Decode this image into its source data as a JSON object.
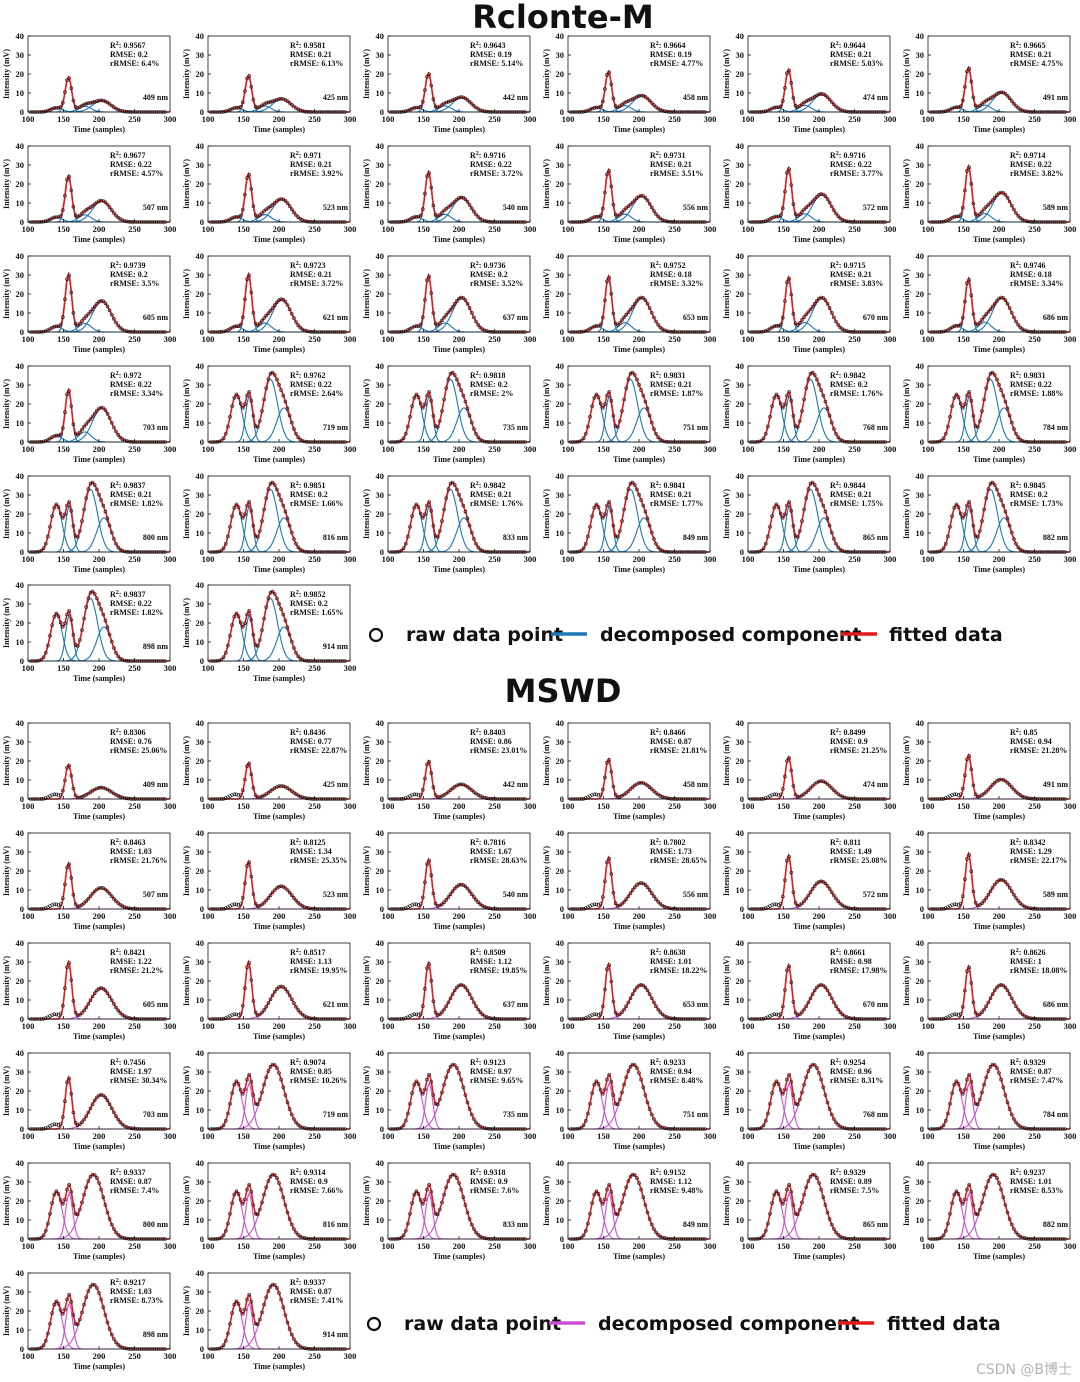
{
  "legend": {
    "raw": "raw data point",
    "component": "decomposed component",
    "fitted": "fitted data"
  },
  "watermark": "CSDN @B博士",
  "colors": {
    "raw_marker": "#1a1a1a",
    "fitted": "#e31a1c",
    "component_rclonte": "#1f77b4",
    "component_mswd": "#c94fd6"
  },
  "chart_data": [
    {
      "panel_group": "Rclonte-M",
      "type": "line",
      "xlabel": "Time (samples)",
      "ylabel": "Intensity (mV)",
      "xlim": [
        100,
        300
      ],
      "ylim": [
        0,
        40
      ],
      "xticks": [
        100,
        150,
        200,
        250,
        300
      ],
      "yticks": [
        0,
        10,
        20,
        30,
        40
      ],
      "series_names": [
        "raw data point",
        "decomposed component",
        "fitted data"
      ],
      "panels": [
        {
          "wavelength": "409 nm",
          "r2": "0.9567",
          "rmse": "0.2",
          "rrmse": "6.4%"
        },
        {
          "wavelength": "425 nm",
          "r2": "0.9581",
          "rmse": "0.21",
          "rrmse": "6.13%"
        },
        {
          "wavelength": "442 nm",
          "r2": "0.9643",
          "rmse": "0.19",
          "rrmse": "5.14%"
        },
        {
          "wavelength": "458 nm",
          "r2": "0.9664",
          "rmse": "0.19",
          "rrmse": "4.77%"
        },
        {
          "wavelength": "474 nm",
          "r2": "0.9644",
          "rmse": "0.21",
          "rrmse": "5.03%"
        },
        {
          "wavelength": "491 nm",
          "r2": "0.9665",
          "rmse": "0.21",
          "rrmse": "4.75%"
        },
        {
          "wavelength": "507 nm",
          "r2": "0.9677",
          "rmse": "0.22",
          "rrmse": "4.57%"
        },
        {
          "wavelength": "523 nm",
          "r2": "0.971",
          "rmse": "0.21",
          "rrmse": "3.92%"
        },
        {
          "wavelength": "540 nm",
          "r2": "0.9716",
          "rmse": "0.22",
          "rrmse": "3.72%"
        },
        {
          "wavelength": "556 nm",
          "r2": "0.9731",
          "rmse": "0.21",
          "rrmse": "3.51%"
        },
        {
          "wavelength": "572 nm",
          "r2": "0.9716",
          "rmse": "0.22",
          "rrmse": "3.77%"
        },
        {
          "wavelength": "589 nm",
          "r2": "0.9714",
          "rmse": "0.22",
          "rrmse": "3.82%"
        },
        {
          "wavelength": "605 nm",
          "r2": "0.9739",
          "rmse": "0.2",
          "rrmse": "3.5%"
        },
        {
          "wavelength": "621 nm",
          "r2": "0.9723",
          "rmse": "0.21",
          "rrmse": "3.72%"
        },
        {
          "wavelength": "637 nm",
          "r2": "0.9736",
          "rmse": "0.2",
          "rrmse": "3.52%"
        },
        {
          "wavelength": "653 nm",
          "r2": "0.9752",
          "rmse": "0.18",
          "rrmse": "3.32%"
        },
        {
          "wavelength": "670 nm",
          "r2": "0.9715",
          "rmse": "0.21",
          "rrmse": "3.83%"
        },
        {
          "wavelength": "686 nm",
          "r2": "0.9746",
          "rmse": "0.18",
          "rrmse": "3.34%"
        },
        {
          "wavelength": "703 nm",
          "r2": "0.972",
          "rmse": "0.22",
          "rrmse": "3.34%"
        },
        {
          "wavelength": "719 nm",
          "r2": "0.9762",
          "rmse": "0.22",
          "rrmse": "2.64%"
        },
        {
          "wavelength": "735 nm",
          "r2": "0.9818",
          "rmse": "0.2",
          "rrmse": "2%"
        },
        {
          "wavelength": "751 nm",
          "r2": "0.9831",
          "rmse": "0.21",
          "rrmse": "1.87%"
        },
        {
          "wavelength": "768 nm",
          "r2": "0.9842",
          "rmse": "0.2",
          "rrmse": "1.76%"
        },
        {
          "wavelength": "784 nm",
          "r2": "0.9831",
          "rmse": "0.22",
          "rrmse": "1.88%"
        },
        {
          "wavelength": "800 nm",
          "r2": "0.9837",
          "rmse": "0.21",
          "rrmse": "1.82%"
        },
        {
          "wavelength": "816 nm",
          "r2": "0.9851",
          "rmse": "0.2",
          "rrmse": "1.66%"
        },
        {
          "wavelength": "833 nm",
          "r2": "0.9842",
          "rmse": "0.21",
          "rrmse": "1.76%"
        },
        {
          "wavelength": "849 nm",
          "r2": "0.9841",
          "rmse": "0.21",
          "rrmse": "1.77%"
        },
        {
          "wavelength": "865 nm",
          "r2": "0.9844",
          "rmse": "0.21",
          "rrmse": "1.75%"
        },
        {
          "wavelength": "882 nm",
          "r2": "0.9845",
          "rmse": "0.2",
          "rrmse": "1.73%"
        },
        {
          "wavelength": "898 nm",
          "r2": "0.9837",
          "rmse": "0.22",
          "rrmse": "1.82%"
        },
        {
          "wavelength": "914 nm",
          "r2": "0.9852",
          "rmse": "0.2",
          "rrmse": "1.65%"
        }
      ]
    },
    {
      "panel_group": "MSWD",
      "type": "line",
      "xlabel": "Time (samples)",
      "ylabel": "Intensity (mV)",
      "xlim": [
        100,
        300
      ],
      "ylim": [
        0,
        40
      ],
      "xticks": [
        100,
        150,
        200,
        250,
        300
      ],
      "yticks": [
        0,
        10,
        20,
        30,
        40
      ],
      "series_names": [
        "raw data point",
        "decomposed component",
        "fitted data"
      ],
      "panels": [
        {
          "wavelength": "409 nm",
          "r2": "0.8306",
          "rmse": "0.76",
          "rrmse": "25.06%"
        },
        {
          "wavelength": "425 nm",
          "r2": "0.8436",
          "rmse": "0.77",
          "rrmse": "22.87%"
        },
        {
          "wavelength": "442 nm",
          "r2": "0.8403",
          "rmse": "0.86",
          "rrmse": "23.01%"
        },
        {
          "wavelength": "458 nm",
          "r2": "0.8466",
          "rmse": "0.87",
          "rrmse": "21.81%"
        },
        {
          "wavelength": "474 nm",
          "r2": "0.8499",
          "rmse": "0.9",
          "rrmse": "21.25%"
        },
        {
          "wavelength": "491 nm",
          "r2": "0.85",
          "rmse": "0.94",
          "rrmse": "21.28%"
        },
        {
          "wavelength": "507 nm",
          "r2": "0.8463",
          "rmse": "1.03",
          "rrmse": "21.76%"
        },
        {
          "wavelength": "523 nm",
          "r2": "0.8125",
          "rmse": "1.34",
          "rrmse": "25.35%"
        },
        {
          "wavelength": "540 nm",
          "r2": "0.7816",
          "rmse": "1.67",
          "rrmse": "28.63%"
        },
        {
          "wavelength": "556 nm",
          "r2": "0.7802",
          "rmse": "1.73",
          "rrmse": "28.65%"
        },
        {
          "wavelength": "572 nm",
          "r2": "0.811",
          "rmse": "1.49",
          "rrmse": "25.08%"
        },
        {
          "wavelength": "589 nm",
          "r2": "0.8342",
          "rmse": "1.29",
          "rrmse": "22.17%"
        },
        {
          "wavelength": "605 nm",
          "r2": "0.8421",
          "rmse": "1.22",
          "rrmse": "21.2%"
        },
        {
          "wavelength": "621 nm",
          "r2": "0.8517",
          "rmse": "1.13",
          "rrmse": "19.95%"
        },
        {
          "wavelength": "637 nm",
          "r2": "0.8509",
          "rmse": "1.12",
          "rrmse": "19.85%"
        },
        {
          "wavelength": "653 nm",
          "r2": "0.8638",
          "rmse": "1.01",
          "rrmse": "18.22%"
        },
        {
          "wavelength": "670 nm",
          "r2": "0.8661",
          "rmse": "0.98",
          "rrmse": "17.98%"
        },
        {
          "wavelength": "686 nm",
          "r2": "0.8626",
          "rmse": "1",
          "rrmse": "18.08%"
        },
        {
          "wavelength": "703 nm",
          "r2": "0.7456",
          "rmse": "1.97",
          "rrmse": "30.34%"
        },
        {
          "wavelength": "719 nm",
          "r2": "0.9074",
          "rmse": "0.85",
          "rrmse": "10.26%"
        },
        {
          "wavelength": "735 nm",
          "r2": "0.9123",
          "rmse": "0.97",
          "rrmse": "9.65%"
        },
        {
          "wavelength": "751 nm",
          "r2": "0.9233",
          "rmse": "0.94",
          "rrmse": "8.48%"
        },
        {
          "wavelength": "768 nm",
          "r2": "0.9254",
          "rmse": "0.96",
          "rrmse": "8.31%"
        },
        {
          "wavelength": "784 nm",
          "r2": "0.9329",
          "rmse": "0.87",
          "rrmse": "7.47%"
        },
        {
          "wavelength": "800 nm",
          "r2": "0.9337",
          "rmse": "0.87",
          "rrmse": "7.4%"
        },
        {
          "wavelength": "816 nm",
          "r2": "0.9314",
          "rmse": "0.9",
          "rrmse": "7.66%"
        },
        {
          "wavelength": "833 nm",
          "r2": "0.9318",
          "rmse": "0.9",
          "rrmse": "7.6%"
        },
        {
          "wavelength": "849 nm",
          "r2": "0.9152",
          "rmse": "1.12",
          "rrmse": "9.48%"
        },
        {
          "wavelength": "865 nm",
          "r2": "0.9329",
          "rmse": "0.89",
          "rrmse": "7.5%"
        },
        {
          "wavelength": "882 nm",
          "r2": "0.9237",
          "rmse": "1.01",
          "rrmse": "8.53%"
        },
        {
          "wavelength": "898 nm",
          "r2": "0.9217",
          "rmse": "1.03",
          "rrmse": "8.73%"
        },
        {
          "wavelength": "914 nm",
          "r2": "0.9337",
          "rmse": "0.87",
          "rrmse": "7.41%"
        }
      ]
    }
  ]
}
